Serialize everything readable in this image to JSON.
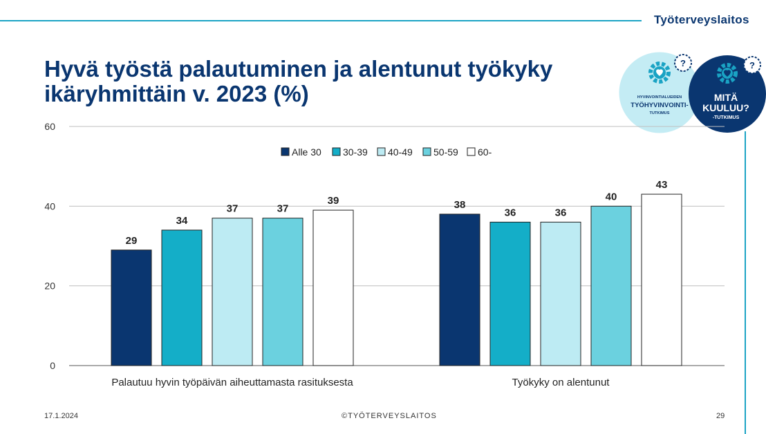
{
  "header": {
    "brand": "Työterveyslaitos",
    "title_line1": "Hyvä työstä palautuminen ja alentunut työkyky",
    "title_line2": "ikäryhmittäin v. 2023 (%)"
  },
  "badges": {
    "left_line1": "HYVINVOINTIALUEIDEN",
    "left_line2": "TYÖHYVINVOINTI-",
    "left_line3": "TUTKIMUS",
    "right_line1": "MITÄ",
    "right_line2": "KUULUU?",
    "right_line3": "-TUTKIMUS",
    "question_mark": "?"
  },
  "footer": {
    "date": "17.1.2024",
    "copyright": "©TYÖTERVEYSLAITOS",
    "page": "29"
  },
  "colors": {
    "navy": "#0a3670",
    "accent": "#1aa3c4",
    "series": [
      "#0a3670",
      "#14aec8",
      "#bdebf3",
      "#6bd1df",
      "#ffffff"
    ]
  },
  "chart_data": {
    "type": "bar",
    "categories": [
      "Palautuu hyvin työpäivän aiheuttamasta rasituksesta",
      "Työkyky on alentunut"
    ],
    "series": [
      {
        "name": "Alle 30",
        "values": [
          29,
          38
        ]
      },
      {
        "name": "30-39",
        "values": [
          34,
          36
        ]
      },
      {
        "name": "40-49",
        "values": [
          37,
          36
        ]
      },
      {
        "name": "50-59",
        "values": [
          37,
          40
        ]
      },
      {
        "name": "60-",
        "values": [
          39,
          43
        ]
      }
    ],
    "ylim": [
      0,
      60
    ],
    "yticks": [
      0,
      20,
      40,
      60
    ],
    "grid": true,
    "legend": "top",
    "data_labels": true
  }
}
